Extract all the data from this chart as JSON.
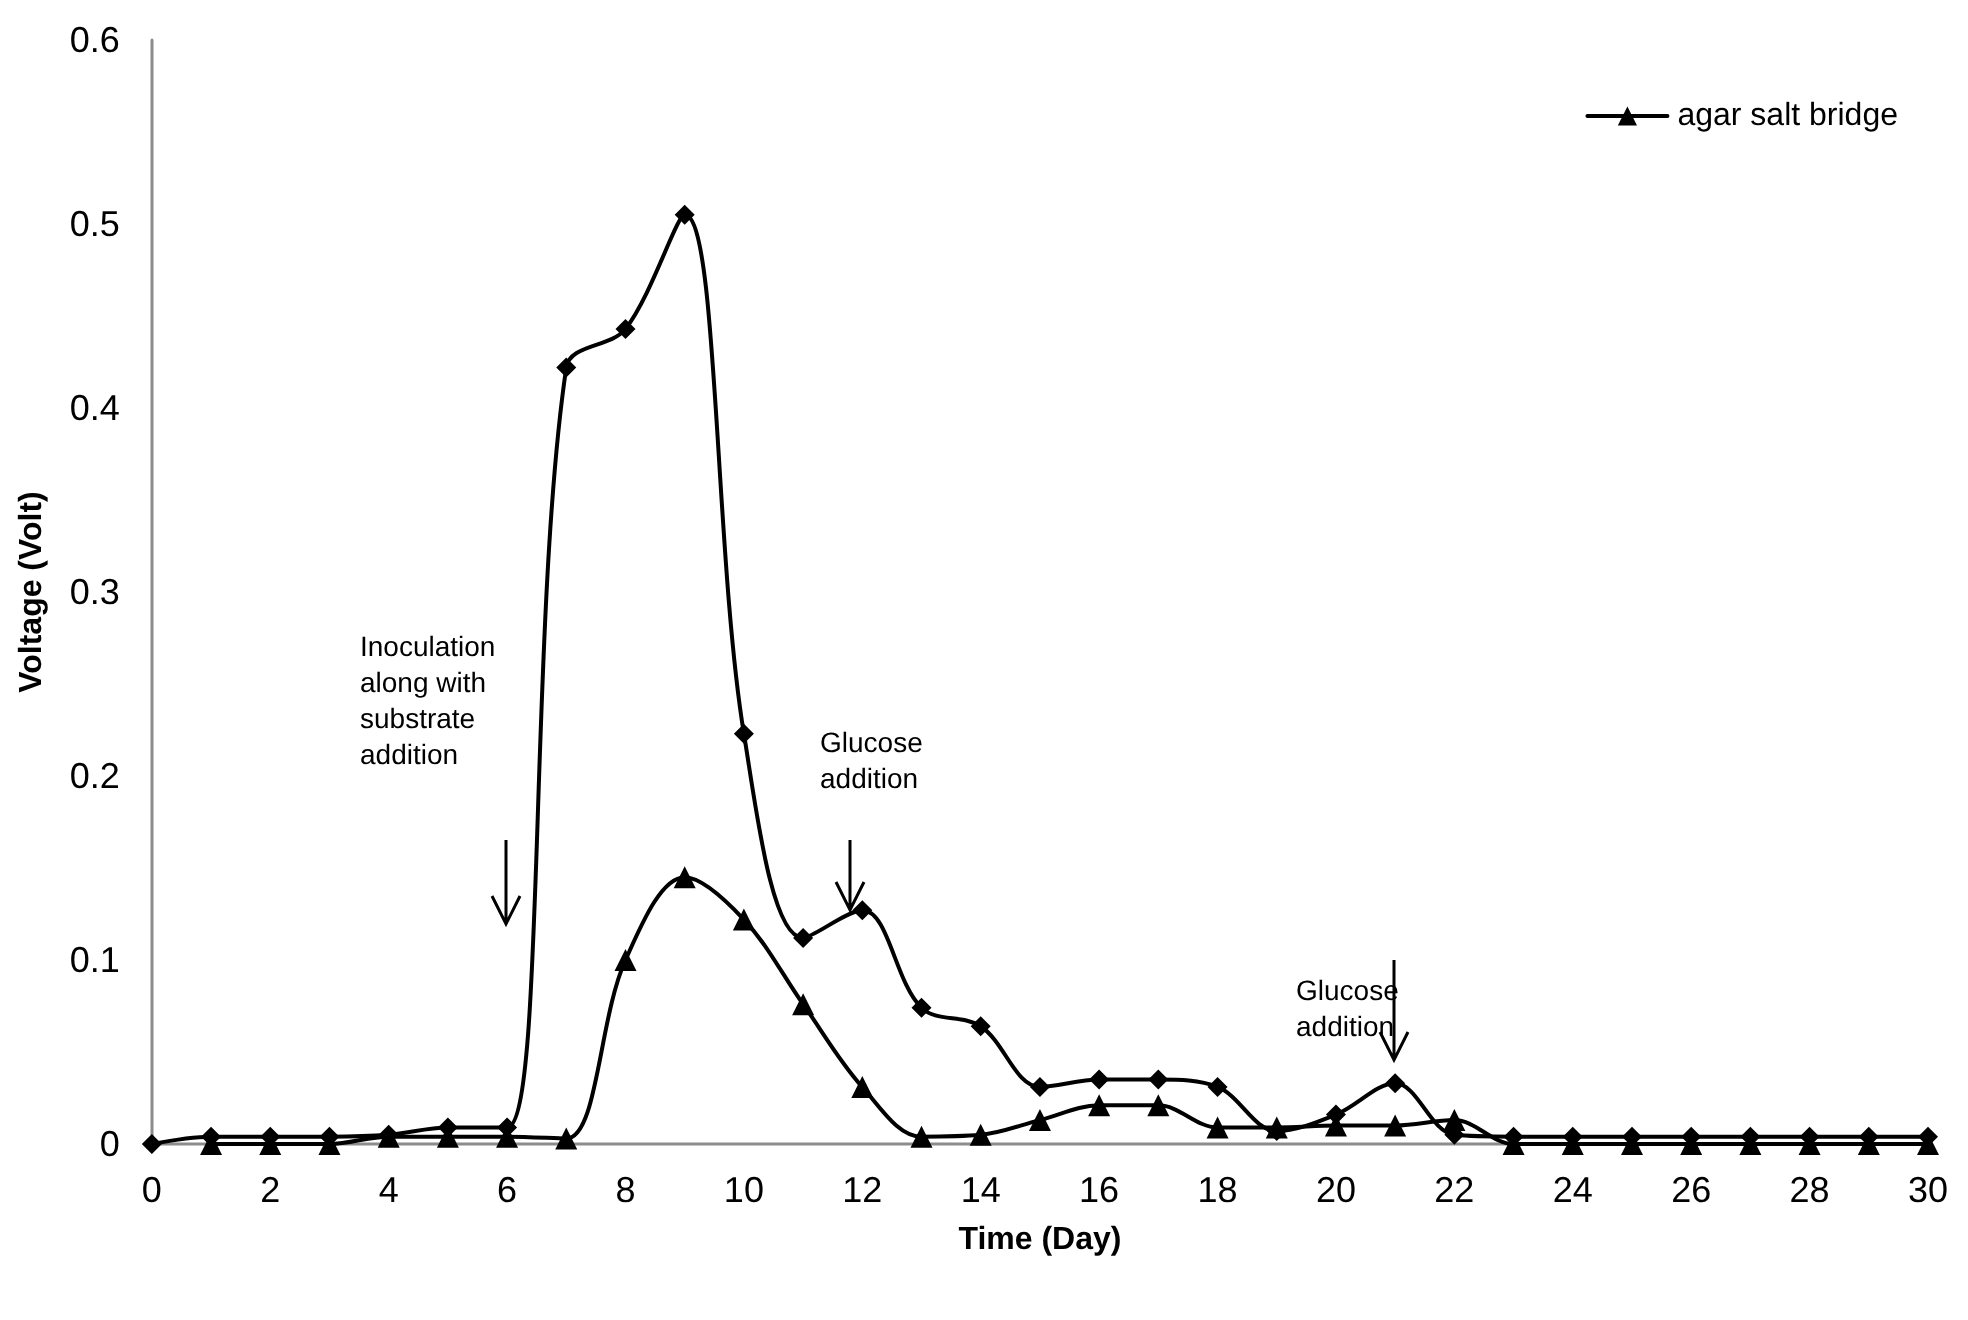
{
  "chart_data": {
    "type": "line",
    "xlabel": "Time (Day)",
    "ylabel": "Voltage (Volt)",
    "xlim": [
      0,
      30
    ],
    "xticks": [
      0,
      2,
      4,
      6,
      8,
      10,
      12,
      14,
      16,
      18,
      20,
      22,
      24,
      26,
      28,
      30
    ],
    "ylim": [
      0,
      0.6
    ],
    "yticks": [
      0,
      0.1,
      0.2,
      0.3,
      0.4,
      0.5,
      0.6
    ],
    "grid": false,
    "legend": "top right",
    "line_style": "solid",
    "series": [
      {
        "color": "#000000",
        "marker": "diamond",
        "x": [
          0,
          1,
          2,
          3,
          4,
          5,
          6,
          7,
          8,
          9,
          10,
          11,
          12,
          13,
          14,
          15,
          16,
          17,
          18,
          19,
          20,
          21,
          22,
          23,
          24,
          25,
          26,
          27,
          28,
          29,
          30
        ],
        "values": [
          0,
          0.004,
          0.004,
          0.004,
          0.005,
          0.009,
          0.009,
          0.422,
          0.443,
          0.505,
          0.223,
          0.112,
          0.127,
          0.074,
          0.064,
          0.031,
          0.035,
          0.035,
          0.031,
          0.007,
          0.016,
          0.033,
          0.005,
          0.004,
          0.004,
          0.004,
          0.004,
          0.004,
          0.004,
          0.004,
          0.004
        ]
      },
      {
        "name": "agar salt bridge",
        "color": "#000000",
        "marker": "triangle",
        "x": [
          1,
          2,
          3,
          4,
          5,
          6,
          7,
          8,
          9,
          10,
          11,
          12,
          13,
          14,
          15,
          16,
          17,
          18,
          19,
          20,
          21,
          22,
          23,
          24,
          25,
          26,
          27,
          28,
          29,
          30
        ],
        "values": [
          0,
          0,
          0,
          0.004,
          0.004,
          0.004,
          0.003,
          0.1,
          0.145,
          0.122,
          0.076,
          0.031,
          0.004,
          0.005,
          0.013,
          0.021,
          0.021,
          0.009,
          0.009,
          0.01,
          0.01,
          0.013,
          0,
          0,
          0,
          0,
          0,
          0,
          0,
          0
        ]
      }
    ],
    "annotations": [
      "Inoculation along with substrate addition",
      "Glucose addition",
      "Glucose addition"
    ]
  }
}
